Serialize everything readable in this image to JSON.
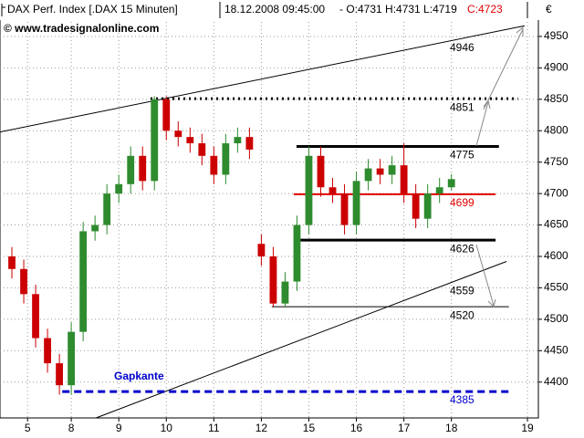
{
  "chart_data": {
    "type": "candlestick",
    "header": {
      "name": "DAX Perf. Index [.DAX  15 Minuten]",
      "datetime": "18.12.2008 09:45:00",
      "ohlc": "- O:4731 H:4731 L:4719",
      "close": "C:4723"
    },
    "watermark": "© www.tradesignalonline.com",
    "currency": "€",
    "up_color": "#2e8b2e",
    "down_color": "#cc0000",
    "x": [
      -1.25,
      -1.0,
      -0.75,
      -0.5,
      -0.25,
      0,
      0.25,
      0.5,
      0.75,
      1,
      1.25,
      1.5,
      1.75,
      2,
      2.25,
      2.5,
      2.75,
      3,
      3.25,
      3.5,
      3.75,
      4,
      4.25,
      4.5,
      4.75,
      5,
      5.25,
      5.5,
      5.75,
      6,
      6.25,
      6.5,
      6.75,
      7,
      7.25,
      7.5,
      7.75,
      8
    ],
    "open": [
      4600,
      4580,
      4540,
      4470,
      4430,
      4395,
      4480,
      4640,
      4650,
      4700,
      4715,
      4760,
      4720,
      4850,
      4800,
      4790,
      4780,
      4760,
      4730,
      4780,
      4790,
      4620,
      4600,
      4525,
      4560,
      4650,
      4760,
      4710,
      4700,
      4650,
      4720,
      4740,
      4730,
      4745,
      4700,
      4660,
      4700,
      4710
    ],
    "high": [
      4615,
      4595,
      4555,
      4485,
      4445,
      4495,
      4655,
      4665,
      4715,
      4730,
      4775,
      4775,
      4855,
      4855,
      4815,
      4805,
      4795,
      4775,
      4795,
      4805,
      4805,
      4635,
      4615,
      4575,
      4665,
      4775,
      4775,
      4725,
      4715,
      4735,
      4755,
      4755,
      4760,
      4780,
      4715,
      4715,
      4725,
      4731
    ],
    "low": [
      4565,
      4525,
      4455,
      4415,
      4380,
      4380,
      4465,
      4625,
      4635,
      4685,
      4700,
      4705,
      4705,
      4785,
      4775,
      4765,
      4745,
      4715,
      4715,
      4765,
      4755,
      4585,
      4520,
      4520,
      4545,
      4635,
      4695,
      4685,
      4635,
      4635,
      4705,
      4715,
      4715,
      4685,
      4645,
      4645,
      4685,
      4705
    ],
    "close": [
      4580,
      4540,
      4470,
      4430,
      4395,
      4480,
      4640,
      4650,
      4700,
      4715,
      4760,
      4720,
      4850,
      4800,
      4790,
      4780,
      4760,
      4730,
      4780,
      4790,
      4770,
      4600,
      4525,
      4560,
      4650,
      4760,
      4710,
      4700,
      4650,
      4720,
      4740,
      4730,
      4745,
      4700,
      4660,
      4700,
      4710,
      4723
    ],
    "xlim": [
      -1.5,
      9.83
    ],
    "ylim": [
      4343,
      5008
    ],
    "yticks": [
      4400,
      4450,
      4500,
      4550,
      4600,
      4650,
      4700,
      4750,
      4800,
      4850,
      4900,
      4950
    ],
    "xticks": [
      {
        "value": -0.92,
        "label": "5"
      },
      {
        "value": 0,
        "label": "8"
      },
      {
        "value": 1,
        "label": "9"
      },
      {
        "value": 2,
        "label": "10"
      },
      {
        "value": 3,
        "label": "11"
      },
      {
        "value": 4,
        "label": "12"
      },
      {
        "value": 5,
        "label": "15"
      },
      {
        "value": 6,
        "label": "16"
      },
      {
        "value": 7,
        "label": "17"
      },
      {
        "value": 8,
        "label": "18"
      },
      {
        "value": 9.6,
        "label": "19"
      }
    ],
    "grid": true,
    "trendlines": [
      {
        "x": [
          -1.5,
          9.54
        ],
        "y": [
          4798,
          4967
        ],
        "color": "#000"
      },
      {
        "x": [
          0.52,
          9.16
        ],
        "y": [
          4343,
          4592
        ],
        "color": "#000"
      }
    ],
    "levels": [
      {
        "value": 4851,
        "x": [
          1.67,
          9.4
        ],
        "color": "#000",
        "width": 3,
        "dash": "2,4"
      },
      {
        "value": 4775,
        "x": [
          4.74,
          9.0
        ],
        "color": "#000",
        "width": 3,
        "dash": ""
      },
      {
        "value": 4699,
        "x": [
          4.68,
          8.93
        ],
        "color": "#e00000",
        "width": 2,
        "dash": ""
      },
      {
        "value": 4626,
        "x": [
          4.74,
          8.93
        ],
        "color": "#000",
        "width": 3,
        "dash": ""
      },
      {
        "value": 4520,
        "x": [
          4.22,
          9.21
        ],
        "color": "#000",
        "width": 1,
        "dash": ""
      },
      {
        "value": 4385,
        "x": [
          -0.19,
          9.29
        ],
        "color": "#0000cc",
        "width": 3,
        "dash": "8,5"
      }
    ],
    "level_labels": [
      {
        "value": 4946,
        "color": "#000"
      },
      {
        "value": 4851,
        "color": "#000"
      },
      {
        "value": 4775,
        "color": "#000"
      },
      {
        "value": 4699,
        "color": "#e00000"
      },
      {
        "value": 4626,
        "color": "#000"
      },
      {
        "value": 4559,
        "color": "#000"
      },
      {
        "value": 4520,
        "color": "#000"
      },
      {
        "value": 4385,
        "color": "#0000cc"
      }
    ],
    "gap_label": "Gapkante"
  }
}
